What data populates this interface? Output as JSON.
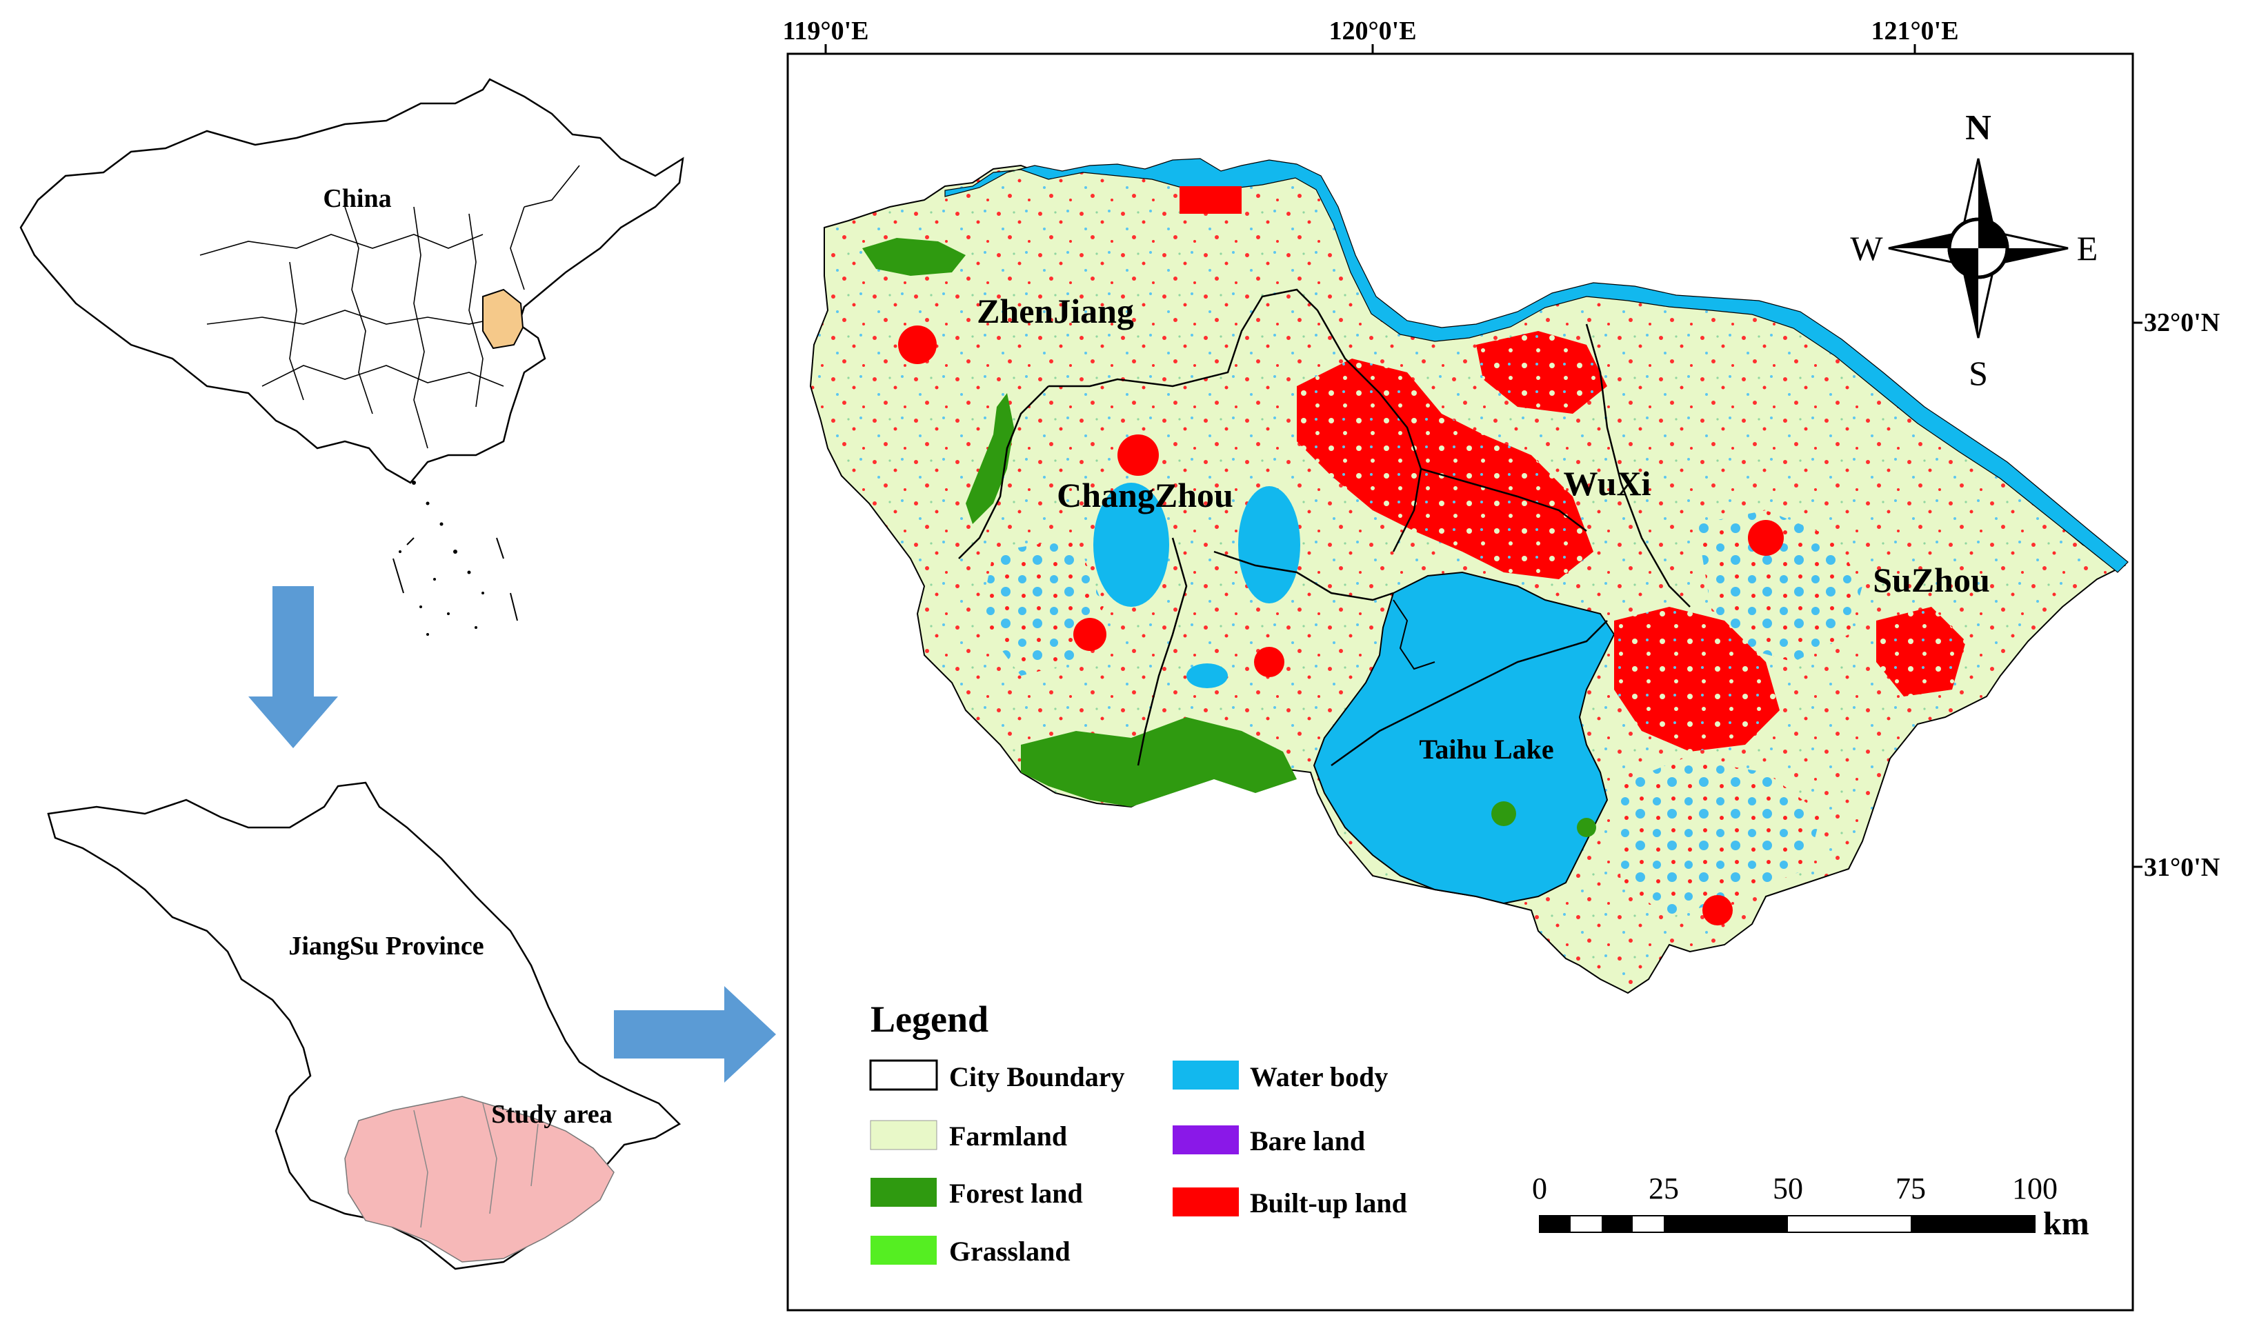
{
  "overview": {
    "china_label": "China",
    "province_label": "JiangSu Province",
    "study_label": "Study area"
  },
  "graticule": {
    "lon": [
      "119°0'E",
      "120°0'E",
      "121°0'E"
    ],
    "lat": [
      "32°0'N",
      "31°0'N"
    ]
  },
  "compass": {
    "north": "N",
    "south": "S",
    "east": "E",
    "west": "W"
  },
  "places": {
    "zhenjiang": "ZhenJiang",
    "changzhou": "ChangZhou",
    "wuxi": "WuXi",
    "suzhou": "SuZhou",
    "taihu": "Taihu Lake"
  },
  "legend": {
    "title": "Legend",
    "items": [
      {
        "label": "City Boundary",
        "color": "#ffffff"
      },
      {
        "label": "Farmland",
        "color": "#e8f8c8"
      },
      {
        "label": "Forest land",
        "color": "#2f9a10"
      },
      {
        "label": "Grassland",
        "color": "#55ee22"
      },
      {
        "label": "Water body",
        "color": "#12b8ee"
      },
      {
        "label": "Bare land",
        "color": "#8a18e8"
      },
      {
        "label": "Built-up land",
        "color": "#ff0000"
      }
    ]
  },
  "scalebar": {
    "ticks": [
      "0",
      "25",
      "50",
      "75",
      "100"
    ],
    "unit": "km"
  },
  "colors": {
    "farmland": "#e8f8c8",
    "forest": "#2f9a10",
    "grassland": "#55ee22",
    "water": "#12b8ee",
    "built": "#ff0000",
    "bare": "#8a18e8",
    "study_area": "#f6b8b8",
    "jiangsu_highlight": "#f5c98a",
    "arrow": "#5b9bd5"
  }
}
